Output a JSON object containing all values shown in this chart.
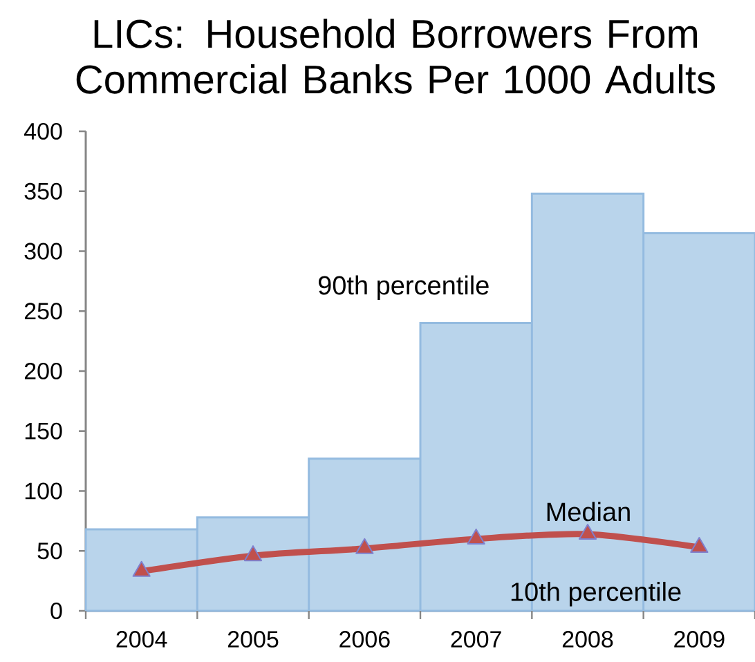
{
  "chart_data": {
    "type": "bar",
    "title": "LICs: Household Borrowers From Commercial Banks Per 1000 Adults",
    "categories": [
      "2004",
      "2005",
      "2006",
      "2007",
      "2008",
      "2009"
    ],
    "series": [
      {
        "name": "90th percentile",
        "color": "#b9d4eb",
        "values": [
          68,
          78,
          127,
          240,
          348,
          315
        ]
      },
      {
        "name": "Median",
        "type": "line",
        "color": "#c0504d",
        "marker": "triangle",
        "values": [
          33,
          46,
          52,
          60,
          64,
          53
        ]
      }
    ],
    "ylim": [
      0,
      400
    ],
    "yticks": [
      0,
      50,
      100,
      150,
      200,
      250,
      300,
      350,
      400
    ],
    "annotations": [
      "10th percentile"
    ]
  }
}
